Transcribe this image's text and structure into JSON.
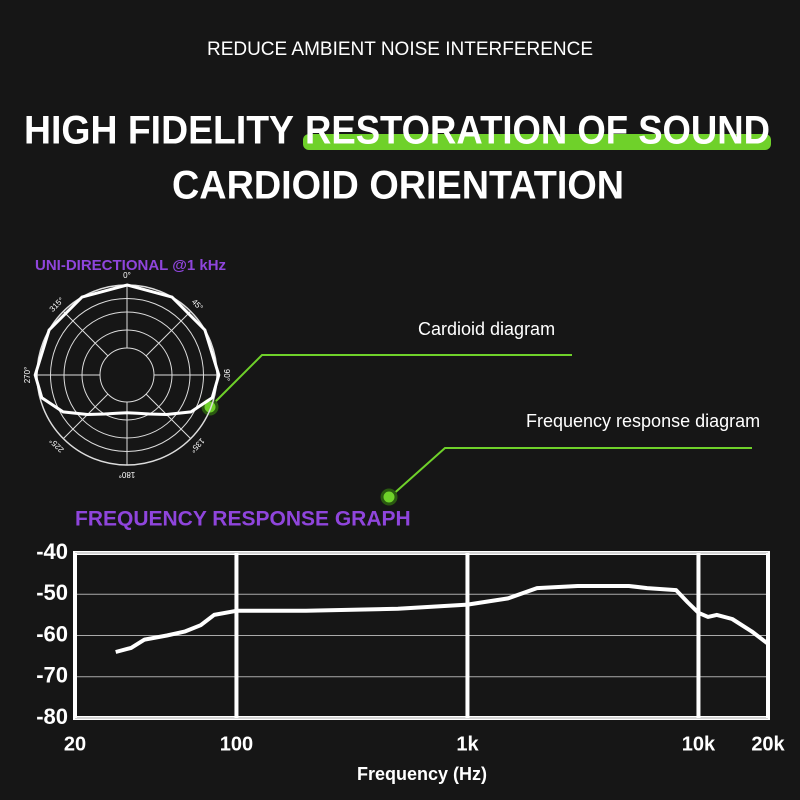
{
  "header": {
    "subtitle": "REDUCE AMBIENT NOISE INTERFERENCE",
    "headline_plain": "HIGH FIDELITY",
    "headline_highlight": "RESTORATION OF SOUND",
    "headline_line2": "CARDIOID ORIENTATION"
  },
  "callouts": [
    "Cardioid diagram",
    "Frequency response diagram"
  ],
  "chart_data": [
    {
      "type": "polar",
      "title": "UNI-DIRECTIONAL @1 kHz",
      "color": "#ffffff",
      "theta": [
        0,
        30,
        60,
        90,
        105,
        120,
        135,
        150,
        165,
        180,
        195,
        210,
        225,
        240,
        255,
        270,
        300,
        330
      ],
      "values": [
        1.0,
        1.0,
        1.0,
        1.02,
        0.98,
        0.82,
        0.62,
        0.5,
        0.44,
        0.42,
        0.44,
        0.5,
        0.62,
        0.82,
        0.98,
        1.02,
        1.0,
        1.0
      ],
      "rlim": [
        0,
        1
      ],
      "rticks": [
        0.3,
        0.5,
        0.7,
        0.85,
        1
      ],
      "thetaticks": [
        {
          "value": 0,
          "label": "0°"
        },
        {
          "value": 45,
          "label": "45°"
        },
        {
          "value": 90,
          "label": "90°"
        },
        {
          "value": 135,
          "label": "135°"
        },
        {
          "value": 180,
          "label": "180°"
        },
        {
          "value": 225,
          "label": "225°"
        },
        {
          "value": 270,
          "label": "270°"
        },
        {
          "value": 315,
          "label": "315°"
        }
      ]
    },
    {
      "type": "line",
      "title": "FREQUENCY RESPONSE GRAPH",
      "x_label": "Frequency (Hz)",
      "color": "#ffffff",
      "xscale": "log",
      "grid": true,
      "x": [
        30,
        35,
        40,
        50,
        60,
        70,
        80,
        100,
        200,
        500,
        1000,
        1500,
        2000,
        3000,
        5000,
        6000,
        8000,
        9000,
        10000,
        11000,
        12000,
        14000,
        17000,
        20000
      ],
      "values": [
        -64,
        -63,
        -61,
        -60,
        -59,
        -57.5,
        -55,
        -54,
        -54,
        -53.5,
        -52.5,
        -51,
        -48.5,
        -48,
        -48,
        -48.5,
        -49,
        -52,
        -54.5,
        -55.5,
        -55,
        -56,
        -59,
        -62
      ],
      "xlim": [
        20,
        20000
      ],
      "ylim": [
        -80,
        -40
      ],
      "xticks": [
        20,
        100,
        {
          "value": 1000,
          "label": "1k"
        },
        {
          "value": 10000,
          "label": "10k"
        },
        {
          "value": 20000,
          "label": "20k"
        }
      ],
      "yticks": [
        -40,
        -50,
        -60,
        -70,
        -80
      ]
    }
  ]
}
